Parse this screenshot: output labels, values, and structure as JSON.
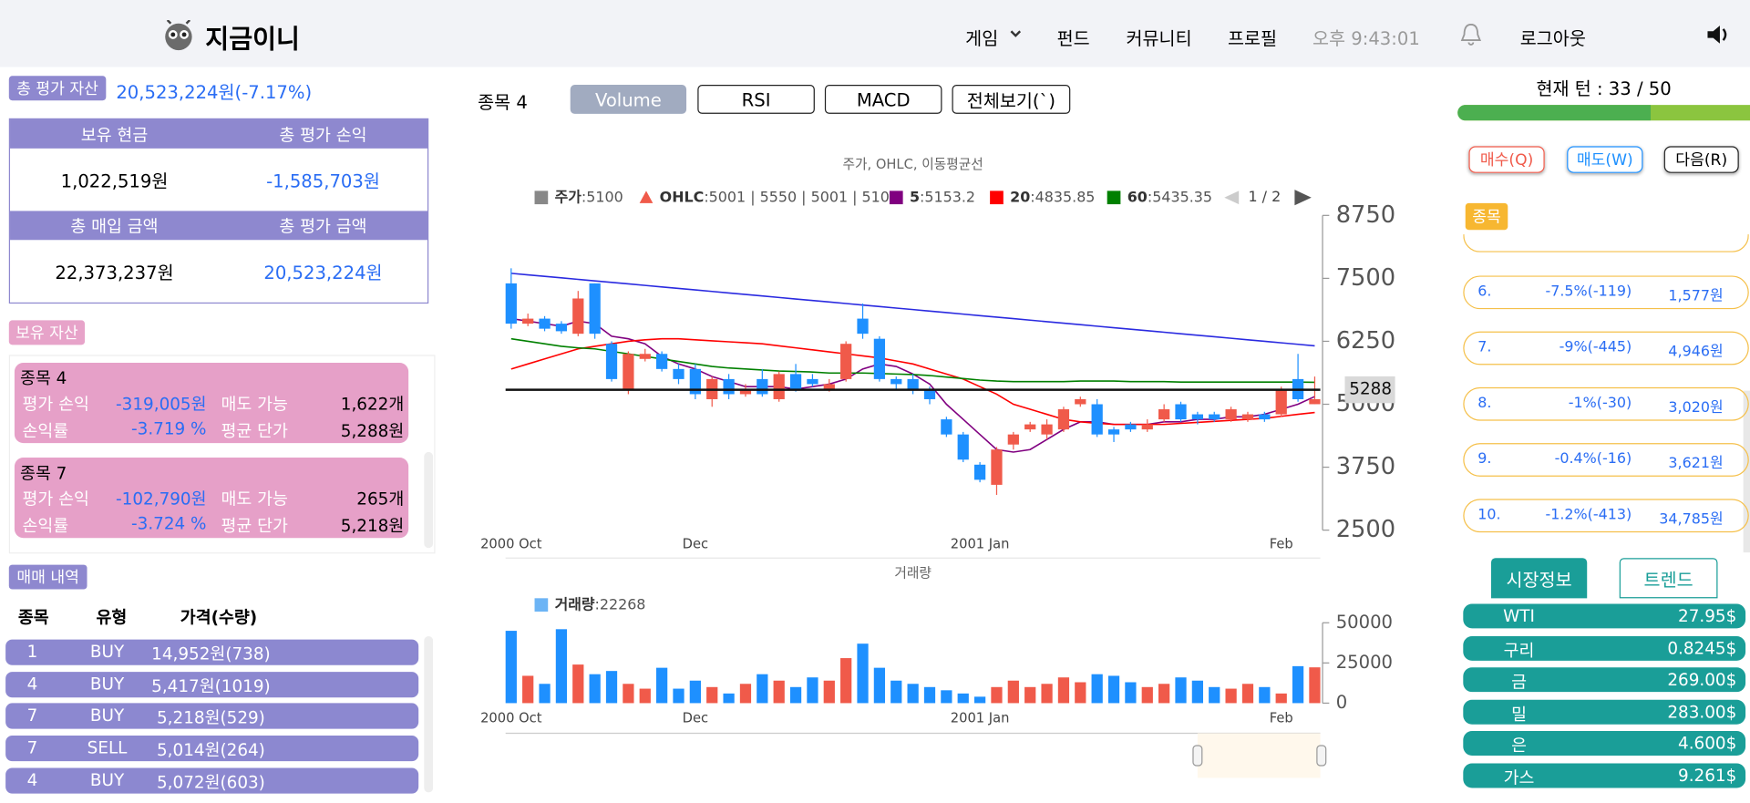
{
  "header": {
    "logo": "지금이니",
    "nav": [
      "게임",
      "펀드",
      "커뮤니티",
      "프로필"
    ],
    "time": "오후 9:43:01",
    "logout": "로그아웃"
  },
  "summary": {
    "label": "총 평가 자산",
    "value": "20,523,224원(-7.17%)",
    "table": [
      [
        "보유 현금",
        "총 평가 손익"
      ],
      [
        "1,022,519원",
        "-1,585,703원"
      ],
      [
        "총 매입 금액",
        "총 평가 금액"
      ],
      [
        "22,373,237원",
        "20,523,224원"
      ]
    ]
  },
  "holdings": {
    "title": "보유 자산",
    "items": [
      {
        "name": "종목 4",
        "rows": [
          [
            "평가 손익",
            "-319,005원",
            "매도 가능",
            "1,622개"
          ],
          [
            "손익률",
            "-3.719 %",
            "평균 단가",
            "5,288원"
          ]
        ]
      },
      {
        "name": "종목 7",
        "rows": [
          [
            "평가 손익",
            "-102,790원",
            "매도 가능",
            "265개"
          ],
          [
            "손익률",
            "-3.724 %",
            "평균 단가",
            "5,218원"
          ]
        ]
      }
    ]
  },
  "trades": {
    "title": "매매 내역",
    "headers": [
      "종목",
      "유형",
      "가격(수량)"
    ],
    "rows": [
      [
        "1",
        "BUY",
        "14,952원(738)"
      ],
      [
        "4",
        "BUY",
        "5,417원(1019)"
      ],
      [
        "7",
        "BUY",
        "5,218원(529)"
      ],
      [
        "7",
        "SELL",
        "5,014원(264)"
      ],
      [
        "4",
        "BUY",
        "5,072원(603)"
      ]
    ]
  },
  "toolbar": {
    "stock": "종목 4",
    "buttons": [
      "Volume",
      "RSI",
      "MACD",
      "전체보기(`)"
    ]
  },
  "turn": {
    "label": "현재 턴 : 33 / 50",
    "current": 33,
    "total": 50
  },
  "actions": [
    "매수(Q)",
    "매도(W)",
    "다음(R)"
  ],
  "stock_list": {
    "tag": "종목",
    "rows": [
      [
        "6.",
        "-7.5%(-119)",
        "1,577원"
      ],
      [
        "7.",
        "-9%(-445)",
        "4,946원"
      ],
      [
        "8.",
        "-1%(-30)",
        "3,020원"
      ],
      [
        "9.",
        "-0.4%(-16)",
        "3,621원"
      ],
      [
        "10.",
        "-1.2%(-413)",
        "34,785원"
      ]
    ]
  },
  "market": {
    "tabs": [
      "시장정보",
      "트렌드"
    ],
    "rows": [
      [
        "WTI",
        "27.95$"
      ],
      [
        "구리",
        "0.8245$"
      ],
      [
        "금",
        "269.00$"
      ],
      [
        "밀",
        "283.00$"
      ],
      [
        "은",
        "4.600$"
      ],
      [
        "가스",
        "9.261$"
      ]
    ]
  },
  "chart_data": [
    {
      "type": "candlestick",
      "title": "주가, OHLC, 이동평균선",
      "categories": [
        "2000 Oct",
        null,
        null,
        null,
        null,
        null,
        null,
        null,
        null,
        null,
        null,
        "Dec",
        null,
        null,
        null,
        null,
        null,
        null,
        null,
        null,
        null,
        null,
        null,
        null,
        null,
        null,
        null,
        null,
        "2001 Jan",
        null,
        null,
        null,
        null,
        null,
        null,
        null,
        null,
        null,
        null,
        null,
        null,
        null,
        null,
        null,
        null,
        null,
        "Feb",
        null,
        null
      ],
      "open": [
        7400,
        6600,
        6700,
        6600,
        6400,
        7400,
        6200,
        5300,
        5900,
        6000,
        5700,
        5700,
        5100,
        5500,
        5200,
        5500,
        5100,
        5600,
        5500,
        5300,
        5500,
        6700,
        6300,
        5500,
        5500,
        5300,
        4700,
        4400,
        3800,
        3400,
        4200,
        4500,
        4400,
        4500,
        5000,
        5000,
        4500,
        4600,
        4500,
        4700,
        5000,
        4800,
        4800,
        4700,
        4700,
        4800,
        4800,
        5500,
        5001
      ],
      "high": [
        7700,
        6800,
        6750,
        6650,
        7250,
        7400,
        6250,
        6050,
        6100,
        6050,
        5800,
        5800,
        5550,
        5600,
        5400,
        5700,
        5650,
        5800,
        5600,
        5500,
        6250,
        7000,
        6350,
        5550,
        5600,
        5350,
        4750,
        4450,
        3850,
        4150,
        4450,
        4650,
        4700,
        4950,
        5150,
        5100,
        4550,
        4650,
        4700,
        5000,
        5050,
        4850,
        4850,
        4950,
        4850,
        4850,
        5350,
        6000,
        5550
      ],
      "low": [
        6500,
        6550,
        6450,
        6400,
        6350,
        6300,
        5450,
        5200,
        5850,
        5650,
        5400,
        5100,
        4950,
        5100,
        5150,
        5150,
        5050,
        5250,
        5350,
        5250,
        5450,
        6300,
        5450,
        5300,
        5200,
        5000,
        4350,
        3850,
        3450,
        3200,
        4100,
        4450,
        4300,
        4450,
        4950,
        4350,
        4250,
        4450,
        4450,
        4650,
        4650,
        4600,
        4650,
        4650,
        4650,
        4650,
        4750,
        5050,
        5001
      ],
      "close": [
        6600,
        6700,
        6500,
        6450,
        7100,
        6400,
        5500,
        6000,
        6000,
        5700,
        5500,
        5200,
        5500,
        5200,
        5300,
        5200,
        5600,
        5300,
        5400,
        5400,
        6200,
        6400,
        5500,
        5400,
        5300,
        5100,
        4400,
        3900,
        3500,
        4100,
        4400,
        4600,
        4600,
        4900,
        5100,
        4400,
        4400,
        4500,
        4600,
        4900,
        4700,
        4700,
        4700,
        4900,
        4800,
        4700,
        5300,
        5100,
        5100
      ],
      "up_color": "#f05a4a",
      "down_color": "#1e90ff",
      "legend": [
        {
          "name": "주가",
          "text": ":5100",
          "color": "#888888",
          "marker": "square"
        },
        {
          "name": "OHLC",
          "text": ":5001 | 5550 | 5001 | 5100",
          "color": "#f05a4a",
          "marker": "triangle"
        }
      ],
      "series": [
        {
          "name": "5",
          "legend_text": ":5153.2",
          "color": "#800080",
          "values": [
            6700,
            6650,
            6600,
            6550,
            6650,
            6600,
            6350,
            6300,
            6200,
            5950,
            5800,
            5700,
            5550,
            5450,
            5350,
            5350,
            5350,
            5300,
            5350,
            5400,
            5500,
            5700,
            5800,
            5750,
            5600,
            5400,
            5000,
            4700,
            4400,
            4100,
            4050,
            4100,
            4300,
            4500,
            4650,
            4650,
            4600,
            4600,
            4600,
            4650,
            4650,
            4700,
            4700,
            4750,
            4750,
            4800,
            4900,
            5000,
            5153.2
          ]
        },
        {
          "name": "20",
          "legend_text": ":4835.85",
          "color": "#ff0000",
          "values": [
            5700,
            5800,
            5900,
            6000,
            6100,
            6150,
            6200,
            6250,
            6280,
            6300,
            6300,
            6280,
            6260,
            6240,
            6220,
            6200,
            6160,
            6120,
            6080,
            6040,
            6000,
            5960,
            5920,
            5860,
            5800,
            5700,
            5600,
            5500,
            5350,
            5200,
            5000,
            4900,
            4800,
            4700,
            4650,
            4620,
            4600,
            4600,
            4600,
            4600,
            4620,
            4640,
            4660,
            4680,
            4700,
            4720,
            4760,
            4800,
            4835.85
          ]
        },
        {
          "name": "60",
          "legend_text": ":5435.35",
          "color": "#008000",
          "values": [
            6300,
            6250,
            6200,
            6150,
            6120,
            6100,
            6050,
            6000,
            5950,
            5900,
            5850,
            5800,
            5750,
            5720,
            5700,
            5680,
            5660,
            5650,
            5640,
            5620,
            5620,
            5620,
            5610,
            5600,
            5590,
            5570,
            5540,
            5510,
            5480,
            5460,
            5450,
            5450,
            5450,
            5450,
            5460,
            5460,
            5460,
            5450,
            5450,
            5450,
            5440,
            5440,
            5440,
            5440,
            5440,
            5440,
            5440,
            5440,
            5435.35
          ]
        },
        {
          "color": "#2a2ae0",
          "values": [
            7600,
            7570,
            7540,
            7510,
            7480,
            7450,
            7420,
            7390,
            7360,
            7330,
            7300,
            7270,
            7240,
            7210,
            7180,
            7150,
            7120,
            7090,
            7060,
            7030,
            7000,
            6970,
            6940,
            6910,
            6880,
            6850,
            6820,
            6790,
            6760,
            6730,
            6700,
            6670,
            6640,
            6610,
            6580,
            6550,
            6520,
            6490,
            6460,
            6430,
            6400,
            6370,
            6340,
            6310,
            6280,
            6250,
            6220,
            6190,
            6160
          ]
        }
      ],
      "legend_page": "1 / 2",
      "avg_price": {
        "value": 5288
      },
      "ylim": [
        2500,
        8750
      ],
      "yticks": [
        2500,
        3750,
        5000,
        6250,
        7500,
        8750
      ]
    },
    {
      "type": "bar",
      "title": "거래량",
      "legend": {
        "name": "거래량",
        "text": ":22268",
        "color": "#6cb4f5"
      },
      "categories": [
        "2000 Oct",
        null,
        null,
        null,
        null,
        null,
        null,
        null,
        null,
        null,
        null,
        "Dec",
        null,
        null,
        null,
        null,
        null,
        null,
        null,
        null,
        null,
        null,
        null,
        null,
        null,
        null,
        null,
        null,
        "2001 Jan",
        null,
        null,
        null,
        null,
        null,
        null,
        null,
        null,
        null,
        null,
        null,
        null,
        null,
        null,
        null,
        null,
        null,
        "Feb",
        null,
        null
      ],
      "values": [
        45000,
        17000,
        12000,
        46000,
        24000,
        18000,
        20000,
        12000,
        9000,
        22000,
        9000,
        14000,
        10000,
        6000,
        12000,
        18000,
        14000,
        10000,
        16000,
        14000,
        28000,
        37000,
        22000,
        14000,
        12000,
        10000,
        8000,
        6000,
        4000,
        10000,
        14000,
        10000,
        12000,
        16000,
        13000,
        18000,
        17000,
        13000,
        10000,
        12000,
        16000,
        14000,
        10000,
        9000,
        12000,
        10000,
        6000,
        23000,
        22268
      ],
      "ylim": [
        0,
        50000
      ],
      "yticks": [
        0,
        25000,
        50000
      ]
    }
  ]
}
